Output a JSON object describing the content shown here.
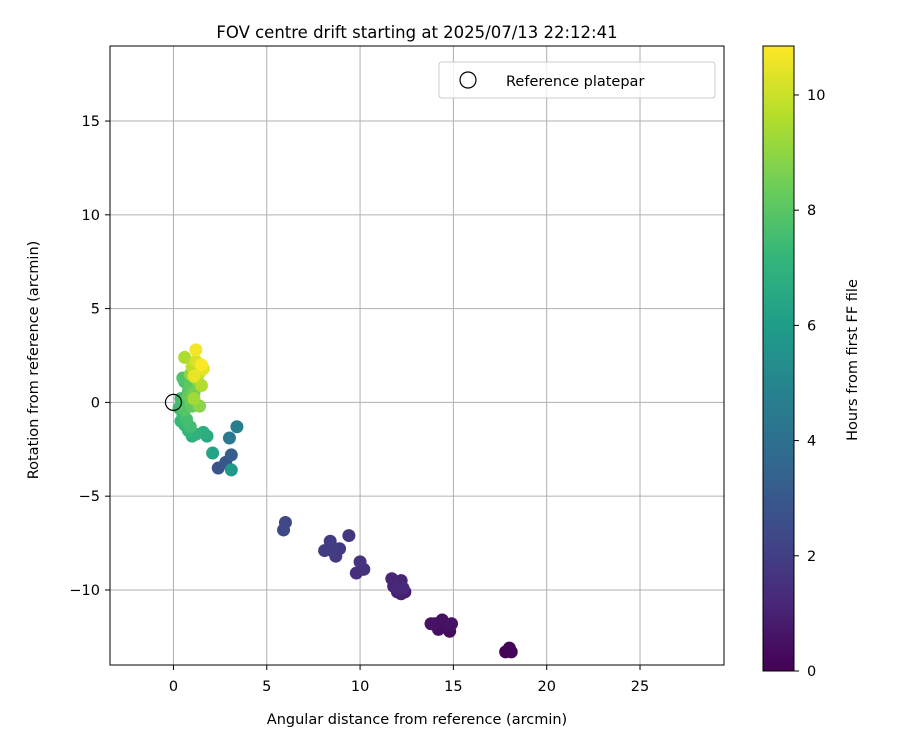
{
  "chart_data": {
    "type": "scatter",
    "title": "FOV centre drift starting at 2025/07/13 22:12:41",
    "xlabel": "Angular distance from reference (arcmin)",
    "ylabel": "Rotation from reference (arcmin)",
    "xlim": [
      -3.4,
      29.5
    ],
    "ylim": [
      -14.0,
      19.0
    ],
    "xticks": [
      0,
      5,
      10,
      15,
      20,
      25
    ],
    "yticks": [
      -10,
      -5,
      0,
      5,
      10,
      15
    ],
    "xtick_labels": [
      "0",
      "5",
      "10",
      "15",
      "20",
      "25"
    ],
    "ytick_labels": [
      "−10",
      "−5",
      "0",
      "5",
      "10",
      "15"
    ],
    "grid": true,
    "legend": {
      "placement": "upper right",
      "entries": [
        "Reference platepar"
      ]
    },
    "reference_point": {
      "x": 0.0,
      "y": 0.0
    },
    "colorbar": {
      "label": "Hours from first FF file",
      "colormap": "viridis",
      "range": [
        0,
        10.85
      ],
      "ticks": [
        0,
        2,
        4,
        6,
        8,
        10
      ],
      "tick_labels": [
        "0",
        "2",
        "4",
        "6",
        "8",
        "10"
      ],
      "stops": [
        "#440154",
        "#482878",
        "#3e4a89",
        "#31688e",
        "#26828e",
        "#1f9e89",
        "#35b779",
        "#6ece58",
        "#b5de2b",
        "#fde725"
      ]
    },
    "points": [
      {
        "x": 18.0,
        "y": -13.1,
        "h": 0.05
      },
      {
        "x": 17.8,
        "y": -13.3,
        "h": 0.08
      },
      {
        "x": 18.1,
        "y": -13.3,
        "h": 0.12
      },
      {
        "x": 14.8,
        "y": -12.2,
        "h": 0.35
      },
      {
        "x": 14.2,
        "y": -12.1,
        "h": 0.4
      },
      {
        "x": 14.6,
        "y": -11.9,
        "h": 0.45
      },
      {
        "x": 14.4,
        "y": -11.6,
        "h": 0.5
      },
      {
        "x": 14.0,
        "y": -11.8,
        "h": 0.55
      },
      {
        "x": 13.8,
        "y": -11.8,
        "h": 0.58
      },
      {
        "x": 14.9,
        "y": -11.8,
        "h": 0.6
      },
      {
        "x": 12.4,
        "y": -10.1,
        "h": 0.9
      },
      {
        "x": 12.2,
        "y": -10.2,
        "h": 0.95
      },
      {
        "x": 12.0,
        "y": -10.1,
        "h": 1.0
      },
      {
        "x": 12.2,
        "y": -9.5,
        "h": 1.05
      },
      {
        "x": 11.8,
        "y": -9.8,
        "h": 1.1
      },
      {
        "x": 11.7,
        "y": -9.4,
        "h": 1.15
      },
      {
        "x": 12.3,
        "y": -9.9,
        "h": 1.2
      },
      {
        "x": 12.0,
        "y": -9.9,
        "h": 1.25
      },
      {
        "x": 9.8,
        "y": -9.1,
        "h": 1.5
      },
      {
        "x": 10.2,
        "y": -8.9,
        "h": 1.55
      },
      {
        "x": 10.0,
        "y": -8.5,
        "h": 1.6
      },
      {
        "x": 9.4,
        "y": -7.1,
        "h": 1.7
      },
      {
        "x": 8.9,
        "y": -7.8,
        "h": 1.8
      },
      {
        "x": 8.7,
        "y": -8.2,
        "h": 1.85
      },
      {
        "x": 8.1,
        "y": -7.9,
        "h": 1.9
      },
      {
        "x": 8.4,
        "y": -7.4,
        "h": 1.95
      },
      {
        "x": 8.5,
        "y": -7.9,
        "h": 2.0
      },
      {
        "x": 6.0,
        "y": -6.4,
        "h": 2.3
      },
      {
        "x": 5.9,
        "y": -6.8,
        "h": 2.35
      },
      {
        "x": 2.4,
        "y": -3.5,
        "h": 2.8
      },
      {
        "x": 2.8,
        "y": -3.2,
        "h": 2.9
      },
      {
        "x": 3.1,
        "y": -2.8,
        "h": 3.2
      },
      {
        "x": 3.0,
        "y": -1.9,
        "h": 4.4
      },
      {
        "x": 3.4,
        "y": -1.3,
        "h": 4.7
      },
      {
        "x": 3.1,
        "y": -3.6,
        "h": 5.8
      },
      {
        "x": 2.1,
        "y": -2.7,
        "h": 6.3
      },
      {
        "x": 1.8,
        "y": -1.8,
        "h": 6.5
      },
      {
        "x": 1.6,
        "y": -1.6,
        "h": 6.8
      },
      {
        "x": 1.0,
        "y": -1.8,
        "h": 6.9
      },
      {
        "x": 1.2,
        "y": -1.7,
        "h": 7.0
      },
      {
        "x": 0.8,
        "y": -1.5,
        "h": 7.1
      },
      {
        "x": 0.6,
        "y": -1.2,
        "h": 7.2
      },
      {
        "x": 0.4,
        "y": -1.0,
        "h": 7.3
      },
      {
        "x": 0.5,
        "y": -0.6,
        "h": 7.4
      },
      {
        "x": 0.3,
        "y": -0.3,
        "h": 7.5
      },
      {
        "x": 0.9,
        "y": -1.3,
        "h": 7.5
      },
      {
        "x": 0.7,
        "y": -0.9,
        "h": 7.6
      },
      {
        "x": 0.4,
        "y": 0.2,
        "h": 7.6
      },
      {
        "x": 0.6,
        "y": 1.1,
        "h": 7.7
      },
      {
        "x": 0.5,
        "y": 1.3,
        "h": 7.8
      },
      {
        "x": 0.8,
        "y": 0.6,
        "h": 7.9
      },
      {
        "x": 0.6,
        "y": -0.4,
        "h": 7.9
      },
      {
        "x": 0.9,
        "y": 0.9,
        "h": 8.1
      },
      {
        "x": 1.0,
        "y": -0.2,
        "h": 8.2
      },
      {
        "x": 0.8,
        "y": 0.3,
        "h": 8.3
      },
      {
        "x": 1.1,
        "y": 0.5,
        "h": 8.5
      },
      {
        "x": 1.3,
        "y": 1.1,
        "h": 8.7
      },
      {
        "x": 1.4,
        "y": -0.2,
        "h": 8.9
      },
      {
        "x": 0.9,
        "y": 1.5,
        "h": 9.0
      },
      {
        "x": 1.2,
        "y": 1.3,
        "h": 9.2
      },
      {
        "x": 1.1,
        "y": 0.2,
        "h": 9.3
      },
      {
        "x": 0.6,
        "y": 2.4,
        "h": 9.5
      },
      {
        "x": 1.5,
        "y": 0.9,
        "h": 9.6
      },
      {
        "x": 1.0,
        "y": 1.9,
        "h": 9.8
      },
      {
        "x": 1.4,
        "y": 1.6,
        "h": 10.0
      },
      {
        "x": 1.2,
        "y": 2.2,
        "h": 10.2
      },
      {
        "x": 1.6,
        "y": 1.8,
        "h": 10.4
      },
      {
        "x": 1.1,
        "y": 1.4,
        "h": 10.5
      },
      {
        "x": 1.2,
        "y": 2.8,
        "h": 10.7
      },
      {
        "x": 1.5,
        "y": 2.0,
        "h": 10.8
      }
    ]
  }
}
